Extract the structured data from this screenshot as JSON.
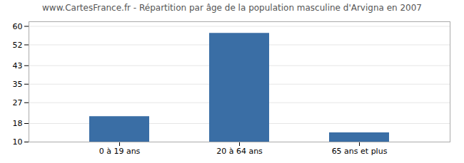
{
  "chart_data": {
    "type": "bar",
    "title": "www.CartesFrance.fr - Répartition par âge de la population masculine d'Arvigna en 2007",
    "categories": [
      "0 à 19 ans",
      "20 à 64 ans",
      "65 ans et plus"
    ],
    "values": [
      21,
      57,
      14
    ],
    "color": "#3a6ea5",
    "ylim": [
      10,
      62
    ],
    "yticks": [
      10,
      18,
      27,
      35,
      43,
      52,
      60
    ],
    "grid": true
  }
}
